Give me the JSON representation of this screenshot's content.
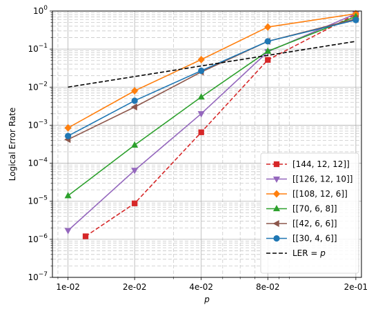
{
  "chart_data": {
    "type": "line",
    "xlabel": "p",
    "ylabel": "Logical Error Rate",
    "x_scale": "log",
    "y_scale": "log",
    "xlim": [
      0.0085,
      0.212
    ],
    "ylim": [
      1e-07,
      1
    ],
    "grid": true,
    "legend_position": "lower-right",
    "x_ticks": [
      {
        "value": 0.01,
        "label": "1e-02"
      },
      {
        "value": 0.02,
        "label": "2e-02"
      },
      {
        "value": 0.04,
        "label": "4e-02"
      },
      {
        "value": 0.08,
        "label": "8e-02"
      },
      {
        "value": 0.2,
        "label": "2e-01"
      }
    ],
    "y_ticks": [
      {
        "value": 1e-07,
        "base": "10",
        "exp": "−7"
      },
      {
        "value": 1e-06,
        "base": "10",
        "exp": "−6"
      },
      {
        "value": 1e-05,
        "base": "10",
        "exp": "−5"
      },
      {
        "value": 0.0001,
        "base": "10",
        "exp": "−4"
      },
      {
        "value": 0.001,
        "base": "10",
        "exp": "−3"
      },
      {
        "value": 0.01,
        "base": "10",
        "exp": "−2"
      },
      {
        "value": 0.1,
        "base": "10",
        "exp": "−1"
      },
      {
        "value": 1,
        "base": "10",
        "exp": "0"
      }
    ],
    "series": [
      {
        "name": "[144, 12, 12]]",
        "color": "#d62728",
        "marker": "square",
        "dashed": true,
        "x": [
          0.012,
          0.02,
          0.04,
          0.08,
          0.2
        ],
        "y": [
          1.2e-06,
          8.8e-06,
          0.00065,
          0.052,
          0.82
        ]
      },
      {
        "name": "[[126, 12, 10]]",
        "color": "#9467bd",
        "marker": "triangle-down",
        "dashed": false,
        "x": [
          0.01,
          0.02,
          0.04,
          0.08,
          0.2
        ],
        "y": [
          1.7e-06,
          6.5e-05,
          0.002,
          0.085,
          0.85
        ]
      },
      {
        "name": "[[108, 12, 6]]",
        "color": "#ff7f0e",
        "marker": "diamond",
        "dashed": false,
        "x": [
          0.01,
          0.02,
          0.04,
          0.08,
          0.2
        ],
        "y": [
          0.00085,
          0.008,
          0.053,
          0.38,
          0.85
        ]
      },
      {
        "name": "[[70, 6, 8]]",
        "color": "#2ca02c",
        "marker": "triangle-up",
        "dashed": false,
        "x": [
          0.01,
          0.02,
          0.04,
          0.08,
          0.2
        ],
        "y": [
          1.4e-05,
          0.0003,
          0.0055,
          0.088,
          0.72
        ]
      },
      {
        "name": "[[42, 6, 6]]",
        "color": "#8c564b",
        "marker": "triangle-left",
        "dashed": false,
        "x": [
          0.01,
          0.02,
          0.04,
          0.08,
          0.2
        ],
        "y": [
          0.00042,
          0.003,
          0.025,
          0.16,
          0.62
        ]
      },
      {
        "name": "[[30, 4, 6]]",
        "color": "#1f77b4",
        "marker": "circle",
        "dashed": false,
        "x": [
          0.01,
          0.02,
          0.04,
          0.08,
          0.2
        ],
        "y": [
          0.00052,
          0.0044,
          0.027,
          0.16,
          0.58
        ]
      },
      {
        "name": "LER = ",
        "name_math": "p",
        "color": "#000000",
        "marker": "none",
        "dashed": true,
        "x": [
          0.01,
          0.2
        ],
        "y": [
          0.01,
          0.16
        ]
      }
    ]
  }
}
